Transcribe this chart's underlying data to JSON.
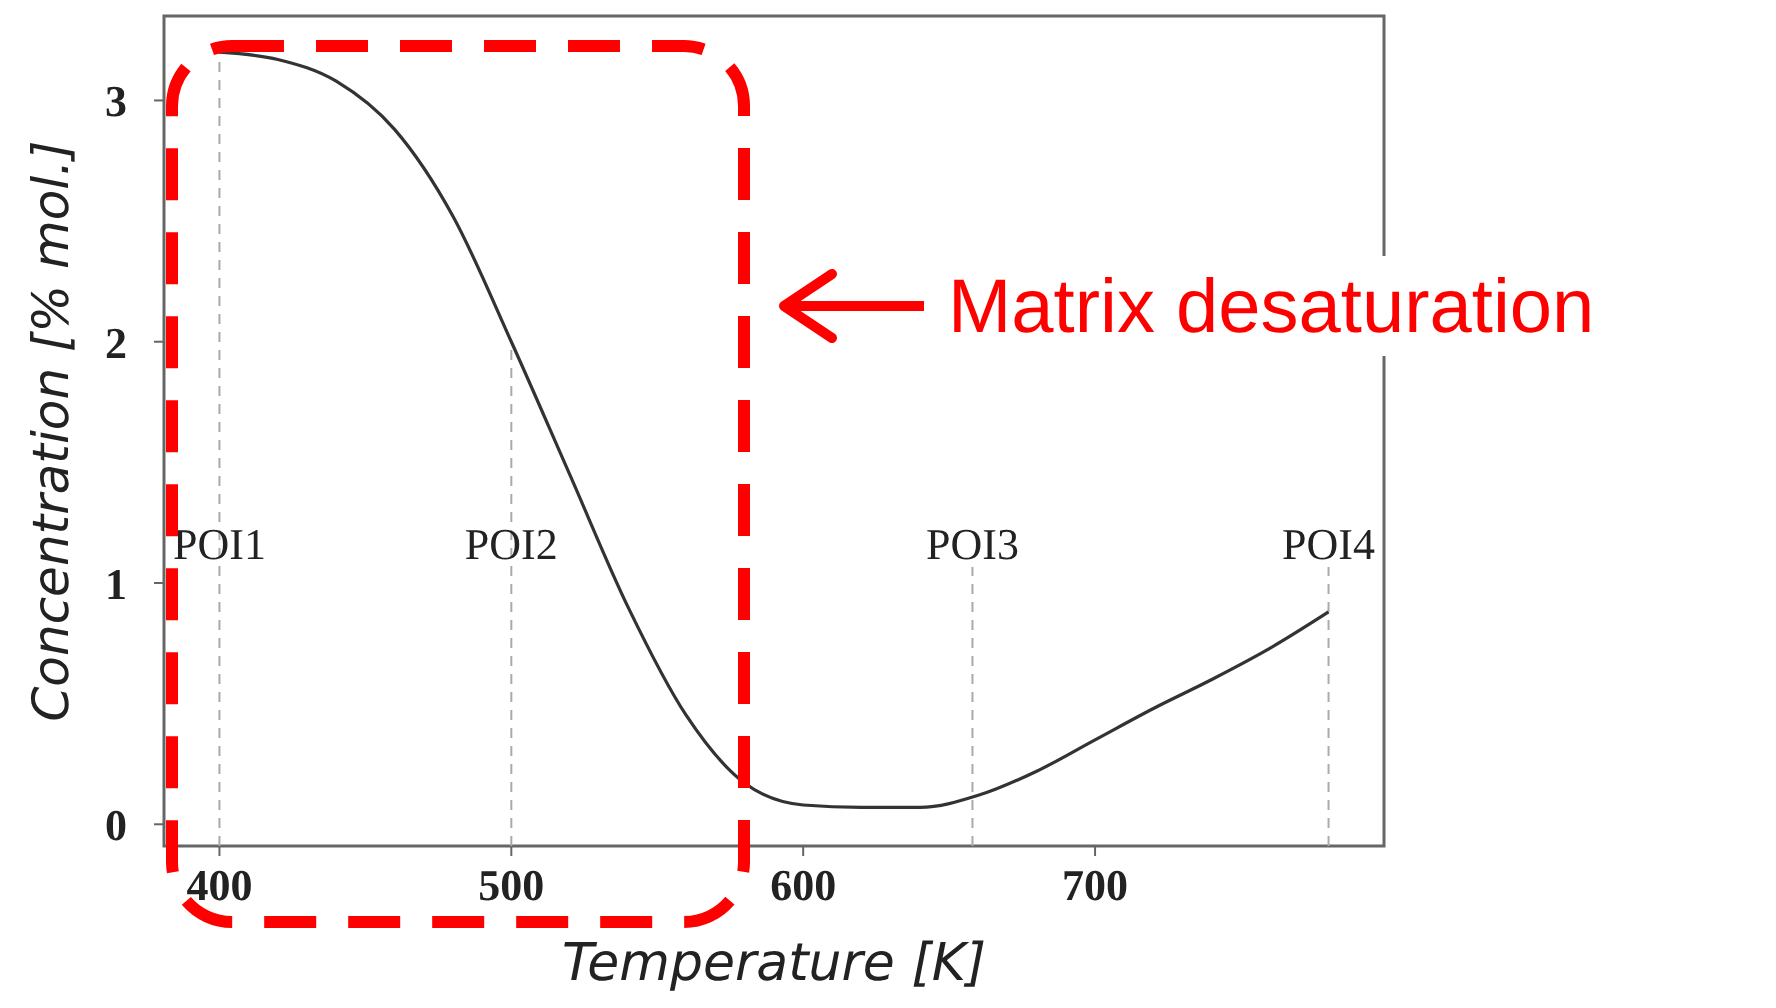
{
  "chart_data": {
    "type": "line",
    "xlabel": "Temperature [K]",
    "ylabel": "Concentration [% mol.]",
    "x": [
      400,
      420,
      440,
      460,
      480,
      500,
      520,
      540,
      560,
      580,
      600,
      620,
      640,
      660,
      680,
      700,
      720,
      740,
      760,
      780
    ],
    "series": [
      {
        "color": "#333333",
        "values": [
          3.2,
          3.17,
          3.08,
          2.88,
          2.52,
          2.0,
          1.45,
          0.9,
          0.45,
          0.17,
          0.08,
          0.07,
          0.07,
          0.12,
          0.22,
          0.35,
          0.48,
          0.6,
          0.73,
          0.88
        ]
      }
    ],
    "xlim": [
      381,
      799
    ],
    "ylim": [
      -0.09,
      3.35
    ],
    "xticks": [
      400,
      500,
      600,
      700
    ],
    "yticks": [
      0,
      1,
      2,
      3
    ],
    "grid": false,
    "marker": "none",
    "line_style": "solid",
    "ref_lines": [
      {
        "axis": "x",
        "value": 400,
        "label": "POI1",
        "color": "#aaaaaa",
        "line_style": "dashed"
      },
      {
        "axis": "x",
        "value": 500,
        "label": "POI2",
        "color": "#aaaaaa",
        "line_style": "dashed"
      },
      {
        "axis": "x",
        "value": 658,
        "label": "POI3",
        "color": "#aaaaaa",
        "line_style": "dashed"
      },
      {
        "axis": "x",
        "value": 780,
        "label": "POI4",
        "color": "#aaaaaa",
        "line_style": "dashed"
      }
    ],
    "annotations": [
      "Matrix desaturation"
    ]
  }
}
